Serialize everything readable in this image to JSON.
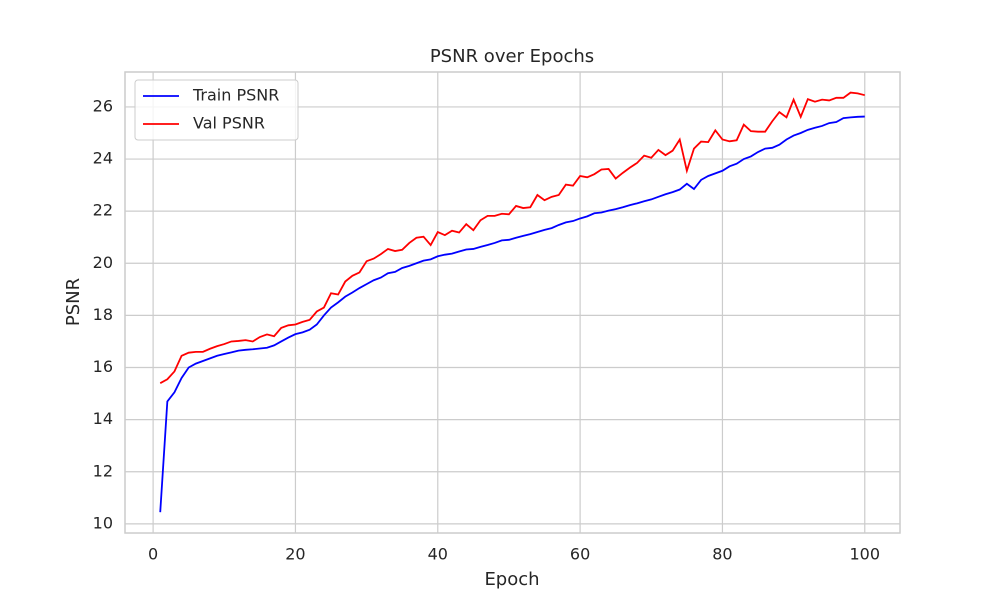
{
  "chart_data": {
    "type": "line",
    "title": "PSNR over Epochs",
    "xlabel": "Epoch",
    "ylabel": "PSNR",
    "x": [
      1,
      2,
      3,
      4,
      5,
      6,
      7,
      8,
      9,
      10,
      11,
      12,
      13,
      14,
      15,
      16,
      17,
      18,
      19,
      20,
      21,
      22,
      23,
      24,
      25,
      26,
      27,
      28,
      29,
      30,
      31,
      32,
      33,
      34,
      35,
      36,
      37,
      38,
      39,
      40,
      41,
      42,
      43,
      44,
      45,
      46,
      47,
      48,
      49,
      50,
      51,
      52,
      53,
      54,
      55,
      56,
      57,
      58,
      59,
      60,
      61,
      62,
      63,
      64,
      65,
      66,
      67,
      68,
      69,
      70,
      71,
      72,
      73,
      74,
      75,
      76,
      77,
      78,
      79,
      80,
      81,
      82,
      83,
      84,
      85,
      86,
      87,
      88,
      89,
      90,
      91,
      92,
      93,
      94,
      95,
      96,
      97,
      98,
      99,
      100
    ],
    "series": [
      {
        "name": "Train PSNR",
        "color": "#0000ff",
        "values": [
          10.45,
          14.7,
          15.05,
          15.6,
          16.0,
          16.15,
          16.25,
          16.35,
          16.45,
          16.52,
          16.58,
          16.65,
          16.68,
          16.7,
          16.73,
          16.76,
          16.85,
          17.0,
          17.15,
          17.28,
          17.35,
          17.45,
          17.65,
          18.0,
          18.3,
          18.5,
          18.72,
          18.88,
          19.05,
          19.2,
          19.35,
          19.45,
          19.62,
          19.67,
          19.82,
          19.9,
          20.0,
          20.1,
          20.15,
          20.27,
          20.33,
          20.37,
          20.45,
          20.53,
          20.55,
          20.63,
          20.7,
          20.78,
          20.88,
          20.9,
          20.98,
          21.05,
          21.12,
          21.2,
          21.28,
          21.35,
          21.47,
          21.57,
          21.62,
          21.72,
          21.8,
          21.92,
          21.95,
          22.02,
          22.08,
          22.15,
          22.23,
          22.3,
          22.38,
          22.45,
          22.55,
          22.65,
          22.73,
          22.83,
          23.05,
          22.85,
          23.2,
          23.35,
          23.45,
          23.55,
          23.72,
          23.82,
          24.0,
          24.1,
          24.27,
          24.4,
          24.43,
          24.55,
          24.75,
          24.9,
          25.0,
          25.12,
          25.2,
          25.27,
          25.38,
          25.42,
          25.57,
          25.6,
          25.62,
          25.63
        ]
      },
      {
        "name": "Val PSNR",
        "color": "#ff0000",
        "values": [
          15.4,
          15.55,
          15.85,
          16.45,
          16.57,
          16.6,
          16.6,
          16.72,
          16.82,
          16.9,
          17.0,
          17.02,
          17.05,
          17.0,
          17.17,
          17.27,
          17.2,
          17.52,
          17.62,
          17.65,
          17.75,
          17.83,
          18.15,
          18.3,
          18.85,
          18.8,
          19.3,
          19.52,
          19.65,
          20.08,
          20.18,
          20.35,
          20.55,
          20.47,
          20.52,
          20.78,
          20.98,
          21.02,
          20.7,
          21.2,
          21.08,
          21.25,
          21.18,
          21.5,
          21.27,
          21.65,
          21.82,
          21.82,
          21.9,
          21.88,
          22.2,
          22.12,
          22.15,
          22.62,
          22.42,
          22.55,
          22.62,
          23.02,
          22.98,
          23.35,
          23.3,
          23.42,
          23.6,
          23.62,
          23.25,
          23.47,
          23.67,
          23.85,
          24.13,
          24.05,
          24.35,
          24.15,
          24.32,
          24.75,
          23.55,
          24.4,
          24.67,
          24.65,
          25.1,
          24.75,
          24.68,
          24.72,
          25.32,
          25.07,
          25.05,
          25.05,
          25.45,
          25.8,
          25.6,
          26.28,
          25.62,
          26.3,
          26.2,
          26.28,
          26.25,
          26.35,
          26.35,
          26.55,
          26.52,
          26.45
        ]
      }
    ],
    "xlim": [
      -3.95,
      104.95
    ],
    "ylim": [
      9.65,
      27.34
    ],
    "xticks": [
      0,
      20,
      40,
      60,
      80,
      100
    ],
    "yticks": [
      10,
      12,
      14,
      16,
      18,
      20,
      22,
      24,
      26
    ],
    "grid": true,
    "legend": "upper left"
  }
}
